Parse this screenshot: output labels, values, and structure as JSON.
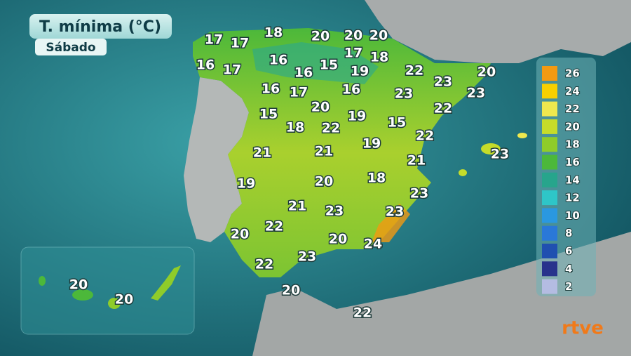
{
  "header": {
    "title": "T. mínima (°C)",
    "subtitle": "Sábado"
  },
  "temperatures": [
    17,
    17,
    18,
    20,
    20,
    20,
    16,
    17,
    16,
    16,
    15,
    17,
    18,
    19,
    22,
    20,
    16,
    17,
    16,
    23,
    23,
    23,
    15,
    20,
    19,
    15,
    22,
    18,
    22,
    22,
    21,
    21,
    19,
    23,
    21,
    19,
    20,
    18,
    23,
    21,
    23,
    23,
    20,
    22,
    20,
    24,
    22,
    23,
    20,
    22,
    20,
    20
  ],
  "legend": [
    {
      "value": 26,
      "color": "#f39a12"
    },
    {
      "value": 24,
      "color": "#f7d000"
    },
    {
      "value": 22,
      "color": "#efe84e"
    },
    {
      "value": 20,
      "color": "#c6dc2a"
    },
    {
      "value": 18,
      "color": "#8fcc2a"
    },
    {
      "value": 16,
      "color": "#4cb83a"
    },
    {
      "value": 14,
      "color": "#27a58c"
    },
    {
      "value": 12,
      "color": "#2ec6c8"
    },
    {
      "value": 10,
      "color": "#2a98e0"
    },
    {
      "value": 8,
      "color": "#2a78d8"
    },
    {
      "value": 6,
      "color": "#2050b0"
    },
    {
      "value": 4,
      "color": "#28328c"
    },
    {
      "value": 2,
      "color": "#b4bce2"
    }
  ],
  "logo": "rtve"
}
